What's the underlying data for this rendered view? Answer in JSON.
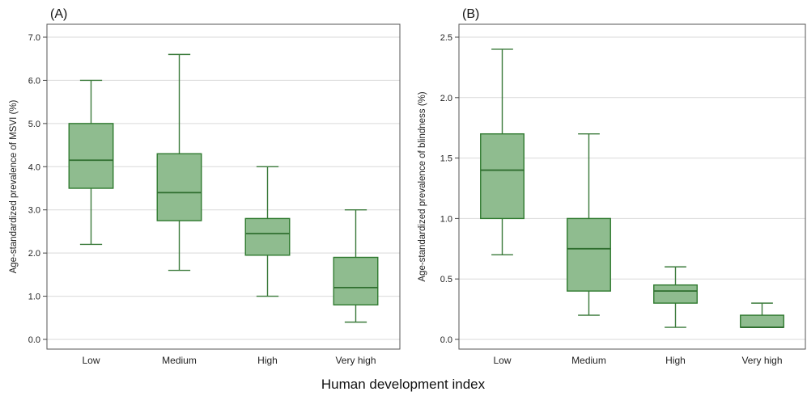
{
  "chart_data": [
    {
      "type": "box",
      "panel_label": "(A)",
      "ylabel": "Age-standardized prevalence of MSVI (%)",
      "ylim": [
        0,
        7.0
      ],
      "yticks": [
        "0.0",
        "1.0",
        "2.0",
        "3.0",
        "4.0",
        "5.0",
        "6.0",
        "7.0"
      ],
      "grid": true,
      "categories": [
        "Low",
        "Medium",
        "High",
        "Very high"
      ],
      "boxes": [
        {
          "min": 2.2,
          "q1": 3.5,
          "median": 4.15,
          "q3": 5.0,
          "max": 6.0
        },
        {
          "min": 1.6,
          "q1": 2.75,
          "median": 3.4,
          "q3": 4.3,
          "max": 6.6
        },
        {
          "min": 1.0,
          "q1": 1.95,
          "median": 2.45,
          "q3": 2.8,
          "max": 4.0
        },
        {
          "min": 0.4,
          "q1": 0.8,
          "median": 1.2,
          "q3": 1.9,
          "max": 3.0
        }
      ]
    },
    {
      "type": "box",
      "panel_label": "(B)",
      "ylabel": "Age-standardized prevalence of blindness (%)",
      "ylim": [
        0,
        2.5
      ],
      "yticks": [
        "0.0",
        "0.5",
        "1.0",
        "1.5",
        "2.0",
        "2.5"
      ],
      "grid": true,
      "categories": [
        "Low",
        "Medium",
        "High",
        "Very high"
      ],
      "boxes": [
        {
          "min": 0.7,
          "q1": 1.0,
          "median": 1.4,
          "q3": 1.7,
          "max": 2.4
        },
        {
          "min": 0.2,
          "q1": 0.4,
          "median": 0.75,
          "q3": 1.0,
          "max": 1.7
        },
        {
          "min": 0.1,
          "q1": 0.3,
          "median": 0.4,
          "q3": 0.45,
          "max": 0.6
        },
        {
          "min": 0.1,
          "q1": 0.1,
          "median": 0.1,
          "q3": 0.2,
          "max": 0.3
        }
      ]
    }
  ],
  "shared_xlabel": "Human development index",
  "colors": {
    "box_fill": "#8fbc8f",
    "box_stroke": "#2f7a2f",
    "grid": "#d9d9d9"
  }
}
